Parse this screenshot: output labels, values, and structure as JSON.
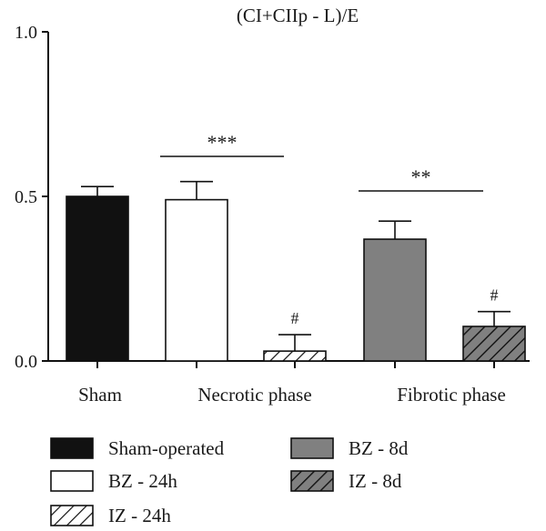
{
  "chart_data": {
    "type": "bar",
    "title": "(CI+CIIp - L)/E",
    "xlabel": "",
    "ylabel": "",
    "ylim": [
      0,
      1.0
    ],
    "yticks": [
      "0.0",
      "0.5",
      "1.0"
    ],
    "groups": [
      "Sham",
      "Necrotic phase",
      "Fibrotic phase"
    ],
    "series": [
      {
        "name": "Sham-operated",
        "group": "Sham",
        "value": 0.5,
        "error": 0.03,
        "fill": "#111111",
        "pattern": "solid"
      },
      {
        "name": "BZ - 24h",
        "group": "Necrotic phase",
        "value": 0.49,
        "error": 0.055,
        "fill": "#ffffff",
        "pattern": "solid"
      },
      {
        "name": "IZ - 24h",
        "group": "Necrotic phase",
        "value": 0.03,
        "error": 0.05,
        "fill": "#ffffff",
        "pattern": "hatch"
      },
      {
        "name": "BZ - 8d",
        "group": "Fibrotic phase",
        "value": 0.37,
        "error": 0.055,
        "fill": "#808080",
        "pattern": "solid"
      },
      {
        "name": "IZ - 8d",
        "group": "Fibrotic phase",
        "value": 0.105,
        "error": 0.045,
        "fill": "#808080",
        "pattern": "hatch"
      }
    ],
    "significance": [
      {
        "label": "***",
        "between": [
          "BZ - 24h",
          "IZ - 24h"
        ]
      },
      {
        "label": "**",
        "between": [
          "BZ - 8d",
          "IZ - 8d"
        ]
      }
    ],
    "annotations": [
      {
        "label": "#",
        "bar": "IZ - 24h"
      },
      {
        "label": "#",
        "bar": "IZ - 8d"
      }
    ],
    "legend_position": "bottom",
    "grid": false
  },
  "colors": {
    "axis": "#111111",
    "hatch": "#111111"
  }
}
